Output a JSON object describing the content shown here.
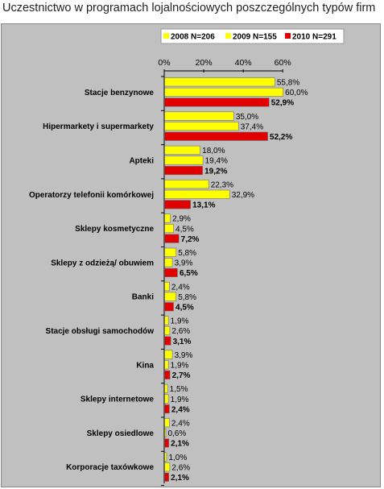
{
  "title": "Uczestnictwo w programach lojalnościowych poszczególnych typów firm",
  "chart_data": {
    "type": "bar",
    "orientation": "horizontal",
    "title": "Uczestnictwo w programach lojalnościowych poszczególnych typów firm",
    "xlim": [
      0,
      60
    ],
    "x_ticks": [
      "0%",
      "20%",
      "40%",
      "60%"
    ],
    "legend_position": "top-right",
    "categories": [
      "Stacje benzynowe",
      "Hipermarkety i supermarkety",
      "Apteki",
      "Operatorzy telefonii komórkowej",
      "Sklepy kosmetyczne",
      "Sklepy z odzieżą/ obuwiem",
      "Banki",
      "Stacje obsługi samochodów",
      "Kina",
      "Sklepy internetowe",
      "Sklepy osiedlowe",
      "Korporacje taxówkowe"
    ],
    "series": [
      {
        "name": "2008 N=206",
        "color": "#ffff00",
        "values": [
          55.8,
          35.0,
          18.0,
          22.3,
          2.9,
          5.8,
          2.4,
          1.9,
          3.9,
          1.5,
          2.4,
          1.0
        ],
        "labels": [
          "55,8%",
          "35,0%",
          "18,0%",
          "22,3%",
          "2,9%",
          "5,8%",
          "2,4%",
          "1,9%",
          "3,9%",
          "1,5%",
          "2,4%",
          "1,0%"
        ]
      },
      {
        "name": "2009 N=155",
        "color": "#ffff00",
        "values": [
          60.0,
          37.4,
          19.4,
          32.9,
          4.5,
          3.9,
          5.8,
          2.6,
          1.9,
          1.9,
          0.6,
          2.6
        ],
        "labels": [
          "60,0%",
          "37,4%",
          "19,4%",
          "32,9%",
          "4,5%",
          "3,9%",
          "5,8%",
          "2,6%",
          "1,9%",
          "1,9%",
          "0,6%",
          "2,6%"
        ]
      },
      {
        "name": "2010 N=291",
        "color": "#e00000",
        "values": [
          52.9,
          52.2,
          19.2,
          13.1,
          7.2,
          6.5,
          4.5,
          3.1,
          2.7,
          2.4,
          2.1,
          2.1
        ],
        "labels": [
          "52,9%",
          "52,2%",
          "19,2%",
          "13,1%",
          "7,2%",
          "6,5%",
          "4,5%",
          "3,1%",
          "2,7%",
          "2,4%",
          "2,1%",
          "2,1%"
        ]
      }
    ]
  }
}
